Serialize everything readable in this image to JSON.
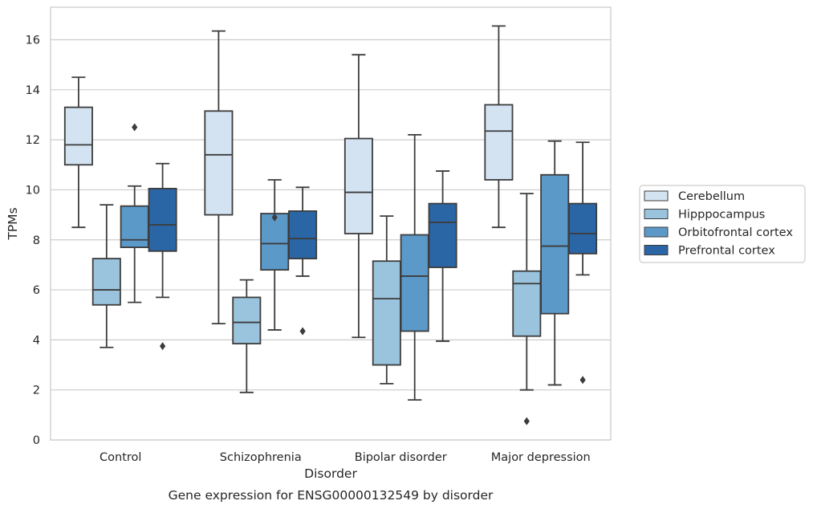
{
  "chart_data": {
    "type": "boxplot",
    "title": "Gene expression for ENSG00000132549 by disorder",
    "xlabel": "Disorder",
    "ylabel": "TPMs",
    "ylim": [
      0,
      17.3
    ],
    "yticks": [
      0,
      2,
      4,
      6,
      8,
      10,
      12,
      14,
      16
    ],
    "grid": "horizontal",
    "legend_position": "right",
    "categories": [
      "Control",
      "Schizophrenia",
      "Bipolar disorder",
      "Major depression"
    ],
    "series": [
      {
        "name": "Cerebellum",
        "color": "#d3e3f2",
        "boxes": [
          {
            "whislo": 8.5,
            "q1": 11.0,
            "med": 11.8,
            "q3": 13.3,
            "whishi": 14.5,
            "fliers": []
          },
          {
            "whislo": 4.65,
            "q1": 9.0,
            "med": 11.4,
            "q3": 13.15,
            "whishi": 16.35,
            "fliers": []
          },
          {
            "whislo": 4.1,
            "q1": 8.25,
            "med": 9.9,
            "q3": 12.05,
            "whishi": 15.4,
            "fliers": []
          },
          {
            "whislo": 8.5,
            "q1": 10.4,
            "med": 12.35,
            "q3": 13.4,
            "whishi": 16.55,
            "fliers": []
          }
        ]
      },
      {
        "name": "Hipppocampus",
        "color": "#9ac3dd",
        "boxes": [
          {
            "whislo": 3.7,
            "q1": 5.4,
            "med": 6.0,
            "q3": 7.25,
            "whishi": 9.4,
            "fliers": []
          },
          {
            "whislo": 1.9,
            "q1": 3.85,
            "med": 4.7,
            "q3": 5.7,
            "whishi": 6.4,
            "fliers": []
          },
          {
            "whislo": 2.25,
            "q1": 3.0,
            "med": 5.65,
            "q3": 7.15,
            "whishi": 8.95,
            "fliers": []
          },
          {
            "whislo": 2.0,
            "q1": 4.15,
            "med": 6.25,
            "q3": 6.75,
            "whishi": 9.85,
            "fliers": [
              0.75
            ]
          }
        ]
      },
      {
        "name": "Orbitofrontal cortex",
        "color": "#5b99c9",
        "boxes": [
          {
            "whislo": 5.5,
            "q1": 7.7,
            "med": 8.0,
            "q3": 9.35,
            "whishi": 10.15,
            "fliers": [
              12.5
            ]
          },
          {
            "whislo": 4.4,
            "q1": 6.8,
            "med": 7.85,
            "q3": 9.05,
            "whishi": 10.4,
            "fliers": [
              8.9
            ]
          },
          {
            "whislo": 1.6,
            "q1": 4.35,
            "med": 6.55,
            "q3": 8.2,
            "whishi": 12.2,
            "fliers": []
          },
          {
            "whislo": 2.2,
            "q1": 5.05,
            "med": 7.75,
            "q3": 10.6,
            "whishi": 11.95,
            "fliers": []
          }
        ]
      },
      {
        "name": "Prefrontal cortex",
        "color": "#2a66a6",
        "boxes": [
          {
            "whislo": 5.7,
            "q1": 7.55,
            "med": 8.6,
            "q3": 10.05,
            "whishi": 11.05,
            "fliers": [
              3.75
            ]
          },
          {
            "whislo": 6.55,
            "q1": 7.25,
            "med": 8.05,
            "q3": 9.15,
            "whishi": 10.1,
            "fliers": [
              4.35
            ]
          },
          {
            "whislo": 3.95,
            "q1": 6.9,
            "med": 8.7,
            "q3": 9.45,
            "whishi": 10.75,
            "fliers": []
          },
          {
            "whislo": 6.6,
            "q1": 7.45,
            "med": 8.25,
            "q3": 9.45,
            "whishi": 11.9,
            "fliers": [
              2.4
            ]
          }
        ]
      }
    ]
  }
}
